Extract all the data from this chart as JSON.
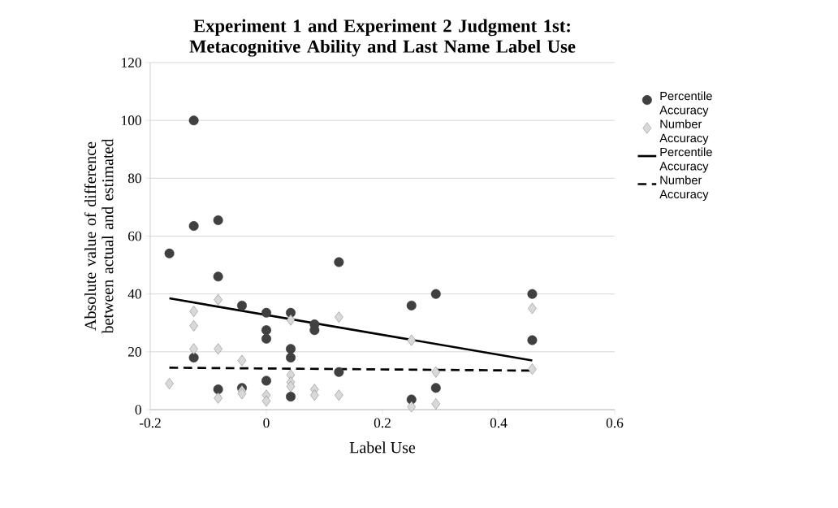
{
  "chart_data": {
    "type": "scatter",
    "title": "Experiment 1 and Experiment 2 Judgment 1st: Metacognitive Ability and Last Name Label Use",
    "xlabel": "Label Use",
    "ylabel": "Absolute value of difference between actual and estimated",
    "xlim": [
      -0.2,
      0.6
    ],
    "xticks": [
      -0.2,
      0,
      0.2,
      0.4,
      0.6
    ],
    "ylim": [
      0,
      120
    ],
    "yticks": [
      0,
      20,
      40,
      60,
      80,
      100,
      120
    ],
    "grid": "y",
    "legend": "right",
    "series": [
      {
        "name": "Percentile Accuracy",
        "marker": "circle",
        "color": "#404040",
        "x": [
          -0.167,
          -0.125,
          -0.125,
          -0.125,
          -0.083,
          -0.083,
          -0.083,
          -0.042,
          -0.042,
          0,
          0,
          0,
          0,
          0.042,
          0.042,
          0.042,
          0.042,
          0.083,
          0.083,
          0.125,
          0.125,
          0.25,
          0.25,
          0.292,
          0.292,
          0.458,
          0.458
        ],
        "values": [
          54,
          100,
          63.5,
          18,
          65.5,
          46,
          7,
          36,
          7.5,
          33.5,
          27.5,
          24.5,
          10,
          33.5,
          21,
          18,
          4.5,
          29.5,
          27.5,
          51,
          13,
          36,
          3.5,
          40,
          7.5,
          40,
          24
        ]
      },
      {
        "name": "Number Accuracy",
        "marker": "diamond",
        "color": "#d9d9d9",
        "x": [
          -0.167,
          -0.125,
          -0.125,
          -0.125,
          -0.083,
          -0.083,
          -0.083,
          -0.042,
          -0.042,
          -0.042,
          0,
          0,
          0.042,
          0.042,
          0.042,
          0.042,
          0.083,
          0.083,
          0.125,
          0.125,
          0.25,
          0.25,
          0.292,
          0.292,
          0.458,
          0.458
        ],
        "values": [
          9,
          34,
          29,
          21,
          38,
          21,
          4,
          17,
          6.5,
          5.5,
          5,
          3,
          31,
          12,
          9.5,
          8,
          7,
          5,
          32,
          5,
          24,
          1,
          13,
          2,
          35,
          14
        ]
      },
      {
        "name": "Percentile Accuracy",
        "type": "line",
        "line_style": "solid",
        "marker": "none",
        "color": "#000000",
        "x": [
          -0.167,
          0.458
        ],
        "values": [
          38.5,
          17
        ]
      },
      {
        "name": "Number Accuracy",
        "type": "line",
        "line_style": "dashed",
        "marker": "none",
        "color": "#000000",
        "x": [
          -0.167,
          0.458
        ],
        "values": [
          14.5,
          13.5
        ]
      }
    ]
  }
}
